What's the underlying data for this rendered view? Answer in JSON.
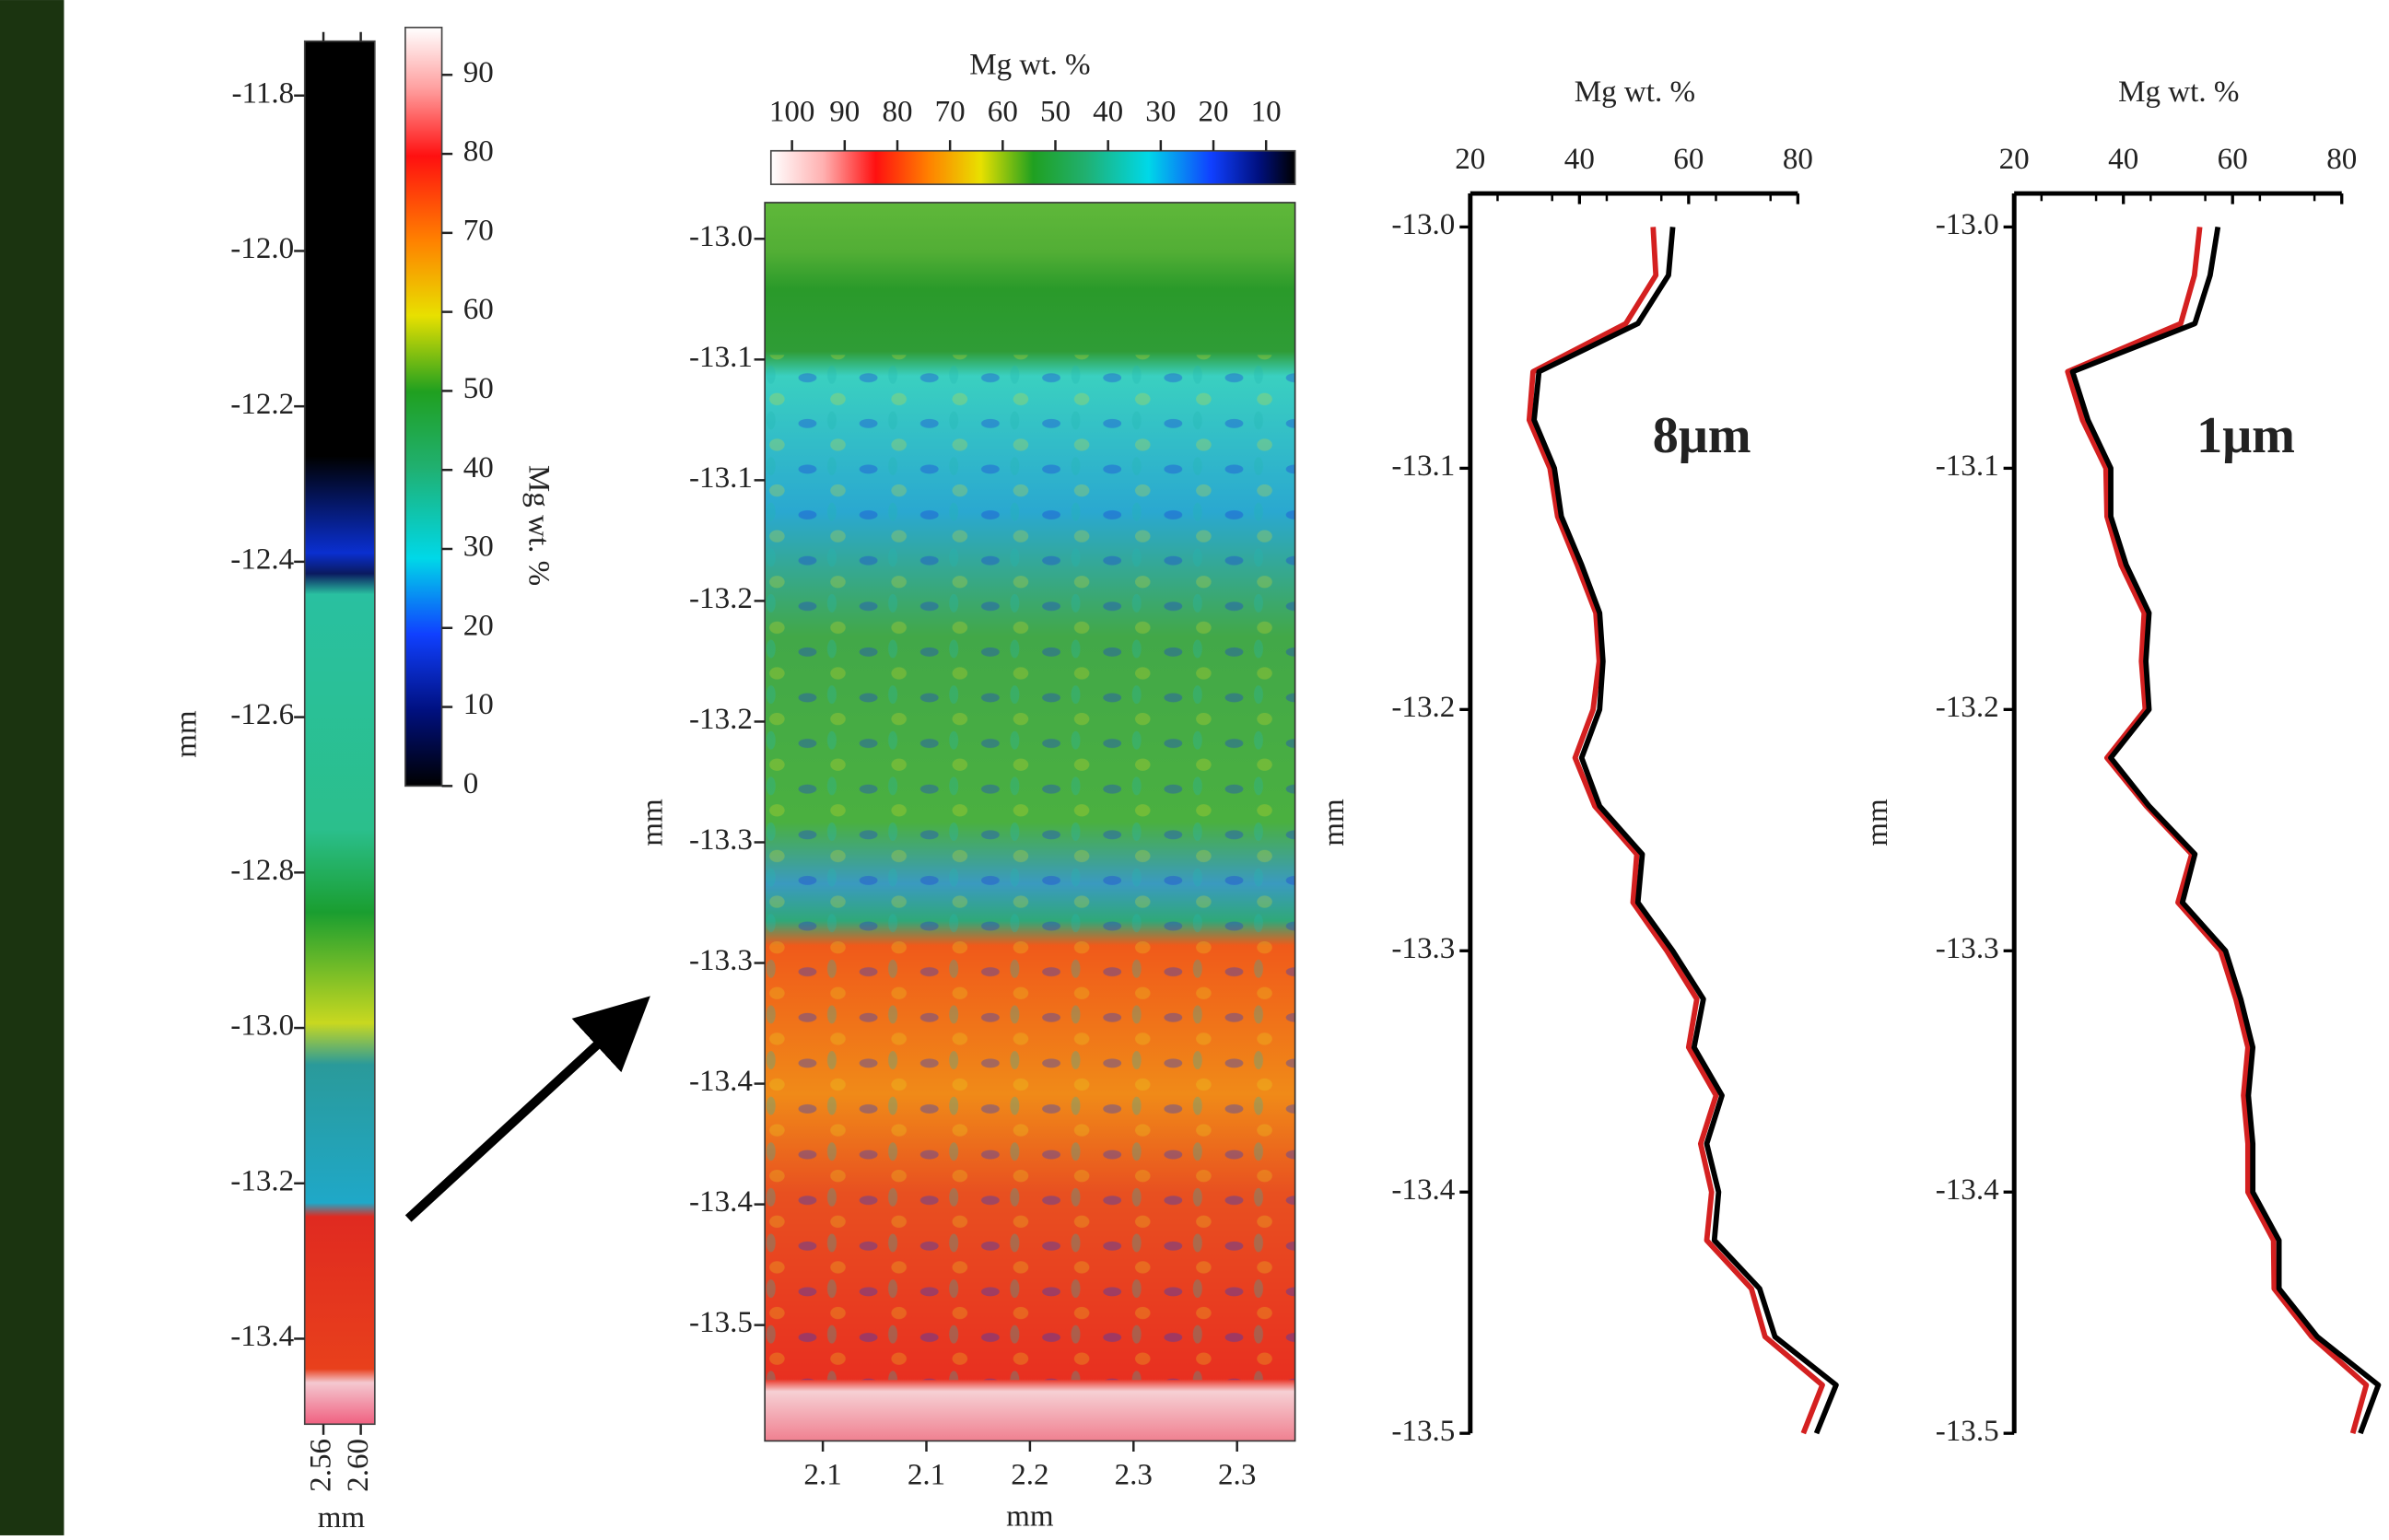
{
  "chart_data": [
    {
      "type": "strip-map",
      "ylabel": "mm",
      "xlabel": "mm",
      "ylim": [
        -11.73,
        -13.51
      ],
      "yticks": [
        -11.8,
        {
          "value": -12,
          "label": "-12.0"
        },
        -12.2,
        -12.4,
        -12.6,
        -12.8,
        {
          "value": -13,
          "label": "-13.0"
        },
        -13.2,
        -13.4
      ],
      "xlim": [
        2.54,
        2.615
      ],
      "xticks": [
        2.56,
        {
          "value": 2.6,
          "label": "2.60"
        }
      ]
    },
    {
      "type": "colorbar",
      "label": "Mg wt. %",
      "ylim": [
        0,
        96
      ],
      "yticks": [
        0,
        10,
        20,
        30,
        40,
        50,
        60,
        70,
        80,
        90
      ]
    },
    {
      "type": "heatmap",
      "colorbar_label": "Mg wt. %",
      "colorbar_lim": [
        104,
        4.5
      ],
      "colorbar_ticks": [
        100,
        90,
        80,
        70,
        60,
        50,
        40,
        30,
        20,
        10
      ],
      "ylabel": "mm",
      "xlabel": "mm",
      "ylim": [
        -12.985,
        -13.498
      ],
      "yticks": [
        {
          "value": -13,
          "label": "-13.0"
        },
        {
          "value": -13.05,
          "label": "-13.1"
        },
        -13.1,
        {
          "value": -13.15,
          "label": "-13.2"
        },
        -13.2,
        {
          "value": -13.25,
          "label": "-13.3"
        },
        -13.3,
        {
          "value": -13.35,
          "label": "-13.4"
        },
        -13.4,
        {
          "value": -13.45,
          "label": "-13.5"
        }
      ],
      "xlim": [
        2.072,
        2.328
      ],
      "xticks": [
        2.1,
        {
          "value": 2.15,
          "label": "2.1"
        },
        2.2,
        {
          "value": 2.25,
          "label": "2.3"
        },
        2.3
      ]
    },
    {
      "type": "line",
      "xlabel": "Mg wt. %",
      "ylabel": "mm",
      "annotation": "8μm",
      "xlim": [
        20,
        80
      ],
      "xticks": [
        20,
        40,
        60,
        80
      ],
      "ylim": [
        -13,
        -13.5
      ],
      "yticks": [
        {
          "value": -13,
          "label": "-13.0"
        },
        -13.1,
        -13.2,
        -13.3,
        -13.4,
        -13.5
      ],
      "y": [
        -13.0,
        -13.02,
        -13.04,
        -13.06,
        -13.08,
        -13.1,
        -13.12,
        -13.14,
        -13.16,
        -13.18,
        -13.2,
        -13.22,
        -13.24,
        -13.26,
        -13.28,
        -13.3,
        -13.32,
        -13.34,
        -13.36,
        -13.38,
        -13.4,
        -13.42,
        -13.44,
        -13.46,
        -13.48,
        -13.5
      ],
      "series": [
        {
          "color": "#d42020",
          "values": [
            53.5,
            54.0,
            48.5,
            31.5,
            30.8,
            34.6,
            36.0,
            39.6,
            43.0,
            43.6,
            42.5,
            39.2,
            42.8,
            50.5,
            49.8,
            56.0,
            61.5,
            60.0,
            65.0,
            62.2,
            64.2,
            63.3,
            71.5,
            74.0,
            84.5,
            81.0
          ]
        },
        {
          "color": "#000000",
          "values": [
            57.1,
            56.3,
            50.7,
            32.6,
            31.7,
            35.4,
            36.7,
            40.4,
            43.7,
            44.3,
            43.7,
            40.4,
            43.7,
            51.5,
            50.7,
            57.1,
            62.7,
            61.0,
            66.1,
            63.3,
            65.5,
            64.7,
            73.0,
            75.8,
            87.0,
            83.4
          ]
        }
      ]
    },
    {
      "type": "line",
      "xlabel": "Mg wt. %",
      "ylabel": "mm",
      "annotation": "1μm",
      "xlim": [
        20,
        80
      ],
      "xticks": [
        20,
        40,
        60,
        80
      ],
      "ylim": [
        -13,
        -13.5
      ],
      "yticks": [
        {
          "value": -13,
          "label": "-13.0"
        },
        -13.1,
        -13.2,
        -13.3,
        -13.4,
        -13.5
      ],
      "y": [
        -13.0,
        -13.02,
        -13.04,
        -13.06,
        -13.08,
        -13.1,
        -13.12,
        -13.14,
        -13.16,
        -13.18,
        -13.2,
        -13.22,
        -13.24,
        -13.26,
        -13.28,
        -13.3,
        -13.32,
        -13.34,
        -13.36,
        -13.38,
        -13.4,
        -13.42,
        -13.44,
        -13.46,
        -13.48,
        -13.5
      ],
      "series": [
        {
          "color": "#d42020",
          "values": [
            54.0,
            53.0,
            50.5,
            29.8,
            32.5,
            36.8,
            37.0,
            39.6,
            43.8,
            43.3,
            44.0,
            37.0,
            44.2,
            52.5,
            50.0,
            57.8,
            60.6,
            62.8,
            62.0,
            62.8,
            62.8,
            67.5,
            67.6,
            74.5,
            84.5,
            82.0
          ]
        },
        {
          "color": "#000000",
          "values": [
            57.3,
            55.9,
            53.1,
            30.7,
            33.5,
            37.7,
            37.7,
            40.5,
            44.7,
            44.1,
            44.7,
            37.7,
            44.7,
            53.1,
            50.8,
            58.7,
            61.5,
            63.7,
            62.9,
            63.7,
            63.7,
            68.5,
            68.5,
            75.5,
            86.7,
            83.4
          ]
        }
      ]
    }
  ]
}
